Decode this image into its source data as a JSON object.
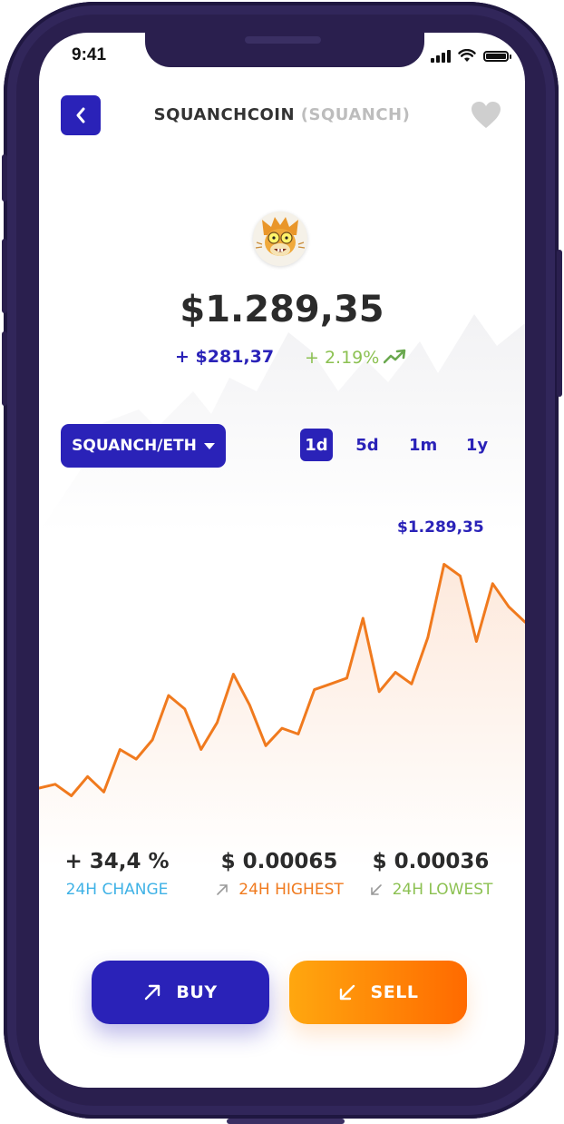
{
  "status_bar": {
    "time": "9:41",
    "icons": [
      "cellular-signal-icon",
      "wifi-icon",
      "battery-icon"
    ]
  },
  "header": {
    "back_icon": "chevron-left-icon",
    "coin_name": "SQUANCHCOIN",
    "coin_ticker": "(SQUANCH)",
    "favorite_icon": "heart-icon"
  },
  "coin": {
    "avatar_icon": "squanchy-cat-avatar-icon",
    "price": "$1.289,35",
    "change_abs": "+ $281,37",
    "change_pct": "+ 2.19%",
    "trend_icon": "trending-up-icon"
  },
  "pair_selector": {
    "label": "SQUANCH/ETH",
    "icon": "caret-down-icon"
  },
  "range_tabs": [
    {
      "label": "1d",
      "active": true
    },
    {
      "label": "5d",
      "active": false
    },
    {
      "label": "1m",
      "active": false
    },
    {
      "label": "1y",
      "active": false
    }
  ],
  "chart_data": {
    "type": "area",
    "title": "",
    "xlabel": "",
    "ylabel": "",
    "peak_label": "$1.289,35",
    "values": [
      32,
      34,
      28,
      38,
      30,
      52,
      47,
      57,
      80,
      73,
      52,
      66,
      91,
      75,
      54,
      63,
      60,
      83,
      86,
      89,
      120,
      82,
      92,
      86,
      110,
      148,
      142,
      108,
      138,
      126,
      118
    ],
    "ylim": [
      0,
      160
    ],
    "grid": false,
    "colors": {
      "line": "#f07a1e",
      "fill_top": "#fde9dc",
      "fill_bottom": "#ffffff"
    }
  },
  "stats": [
    {
      "value": "+ 34,4 %",
      "label": "24H CHANGE",
      "color": "#3fb2e6",
      "icon": ""
    },
    {
      "value": "$ 0.00065",
      "label": "24H HIGHEST",
      "color": "#f07a1e",
      "icon": "arrow-up-right-icon"
    },
    {
      "value": "$ 0.00036",
      "label": "24H LOWEST",
      "color": "#8cc152",
      "icon": "arrow-down-left-icon"
    }
  ],
  "actions": {
    "buy_label": "BUY",
    "buy_icon": "arrow-up-right-icon",
    "sell_label": "SELL",
    "sell_icon": "arrow-down-left-icon"
  },
  "colors": {
    "accent": "#2a22b8",
    "positive": "#8cc152",
    "orange": "#f07a1e",
    "device": "#2a1f4e"
  }
}
